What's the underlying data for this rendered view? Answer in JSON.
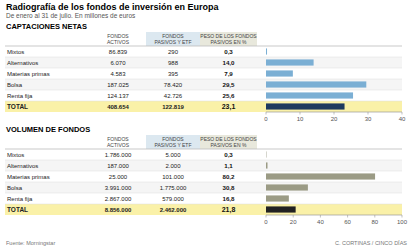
{
  "title": "Radiografía de los fondos de inversión en Europa",
  "subtitle": "De enero al 31 de julio. En millones de euros",
  "annotations": [
    "Fuente: Morningstar",
    "C. CORTINAS / CINCO DÍAS"
  ],
  "chart_data": [
    {
      "type": "bar",
      "orientation": "horizontal",
      "title": "CAPTACIONES NETAS",
      "categories": [
        "Mixtos",
        "Alternativos",
        "Materias primas",
        "Bolsa",
        "Renta fija",
        "TOTAL"
      ],
      "values": [
        0.3,
        14.0,
        7.9,
        29.5,
        25.6,
        23.1
      ],
      "value_labels": [
        "0,3",
        "14,0",
        "7,9",
        "29,5",
        "25,6",
        "23,1"
      ],
      "data_labels": true,
      "colors": [
        "#7bafd4",
        "#7bafd4",
        "#7bafd4",
        "#7bafd4",
        "#7bafd4",
        "#1e3a5f"
      ],
      "xlim": [
        0,
        40
      ],
      "xticks": [
        0,
        10,
        20,
        30,
        40
      ],
      "grid": false,
      "table": {
        "columns": [
          {
            "name": "FONDOS ACTIVOS",
            "values": [
              "86.839",
              "6.070",
              "4.583",
              "187.025",
              "124.137",
              "408.654"
            ]
          },
          {
            "name": "FONDOS PASIVOS Y ETF",
            "color": "#dce8f0",
            "values": [
              "290",
              "988",
              "395",
              "78.420",
              "42.726",
              "122.819"
            ]
          }
        ],
        "value_column": {
          "name": "PESO DE LOS FONDOS PASIVOS EN %",
          "color": "#e8e8dc"
        }
      }
    },
    {
      "type": "bar",
      "orientation": "horizontal",
      "title": "VOLUMEN DE FONDOS",
      "categories": [
        "Mixtos",
        "Alternativos",
        "Materias primas",
        "Bolsa",
        "Renta fija",
        "TOTAL"
      ],
      "values": [
        0.3,
        1.1,
        80.2,
        30.8,
        16.8,
        21.8
      ],
      "value_labels": [
        "0,3",
        "1,1",
        "80,2",
        "30,8",
        "16,8",
        "21,8"
      ],
      "data_labels": true,
      "colors": [
        "#9b9b85",
        "#9b9b85",
        "#9b9b85",
        "#9b9b85",
        "#9b9b85",
        "#222222"
      ],
      "xlim": [
        0,
        100
      ],
      "xticks": [
        0,
        20,
        40,
        60,
        80,
        100
      ],
      "grid": false,
      "table": {
        "columns": [
          {
            "name": "FONDOS ACTIVOS",
            "values": [
              "1.786.000",
              "187.000",
              "25.000",
              "3.991.000",
              "2.867.000",
              "8.856.000"
            ]
          },
          {
            "name": "FONDOS PASIVOS Y ETF",
            "color": "#dce8f0",
            "values": [
              "5.000",
              "2.000",
              "101.000",
              "1.775.000",
              "579.000",
              "2.462.000"
            ]
          }
        ],
        "value_column": {
          "name": "PESO DE LOS FONDOS PASIVOS EN %",
          "color": "#e8e8dc"
        }
      }
    }
  ]
}
